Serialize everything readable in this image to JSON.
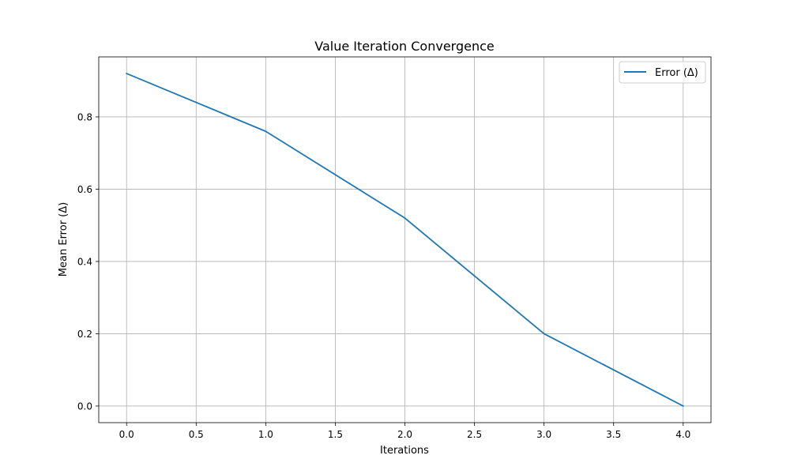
{
  "chart_data": {
    "type": "line",
    "title": "Value Iteration Convergence",
    "xlabel": "Iterations",
    "ylabel": "Mean Error (Δ)",
    "xlim": [
      -0.2,
      4.2
    ],
    "ylim": [
      -0.046,
      0.966
    ],
    "x_ticks": [
      0.0,
      0.5,
      1.0,
      1.5,
      2.0,
      2.5,
      3.0,
      3.5,
      4.0
    ],
    "x_tick_labels": [
      "0.0",
      "0.5",
      "1.0",
      "1.5",
      "2.0",
      "2.5",
      "3.0",
      "3.5",
      "4.0"
    ],
    "y_ticks": [
      0.0,
      0.2,
      0.4,
      0.6,
      0.8
    ],
    "y_tick_labels": [
      "0.0",
      "0.2",
      "0.4",
      "0.6",
      "0.8"
    ],
    "grid": true,
    "legend_position": "top-right",
    "series": [
      {
        "name": "Error (Δ)",
        "color": "#1f77b4",
        "x": [
          0,
          1,
          2,
          3,
          4
        ],
        "y": [
          0.92,
          0.76,
          0.52,
          0.2,
          0.0
        ]
      }
    ]
  }
}
